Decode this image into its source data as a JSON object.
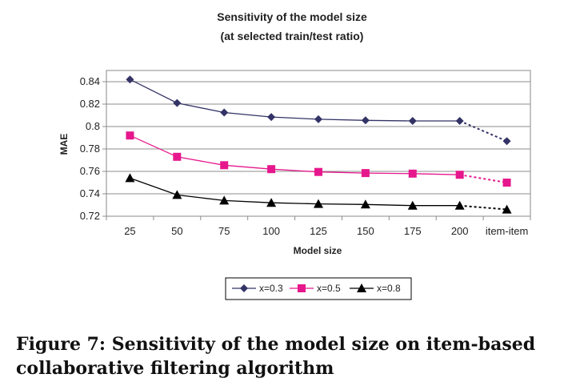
{
  "chart_data": {
    "type": "line",
    "title": "Sensitivity of the model size",
    "subtitle": "(at selected train/test ratio)",
    "xlabel": "Model size",
    "ylabel": "MAE",
    "categories": [
      "25",
      "50",
      "75",
      "100",
      "125",
      "150",
      "175",
      "200",
      "item-item"
    ],
    "ylim": [
      0.72,
      0.85
    ],
    "yticks": [
      "0.72",
      "0.74",
      "0.76",
      "0.78",
      "0.8",
      "0.82",
      "0.84"
    ],
    "grid": true,
    "legend_position": "bottom",
    "series": [
      {
        "name": "x=0.3",
        "marker": "diamond",
        "color": "#333366",
        "values": [
          0.842,
          0.821,
          0.8125,
          0.8085,
          0.8065,
          0.8055,
          0.805,
          0.805,
          0.787
        ]
      },
      {
        "name": "x=0.5",
        "marker": "square",
        "color": "#e6178c",
        "values": [
          0.792,
          0.773,
          0.7655,
          0.762,
          0.7595,
          0.7585,
          0.758,
          0.757,
          0.75
        ]
      },
      {
        "name": "x=0.8",
        "marker": "triangle",
        "color": "#000000",
        "values": [
          0.754,
          0.739,
          0.734,
          0.732,
          0.731,
          0.7305,
          0.7295,
          0.7295,
          0.726
        ]
      }
    ]
  },
  "caption": "Figure 7: Sensitivity of the model size on item-based collaborative filtering algorithm"
}
